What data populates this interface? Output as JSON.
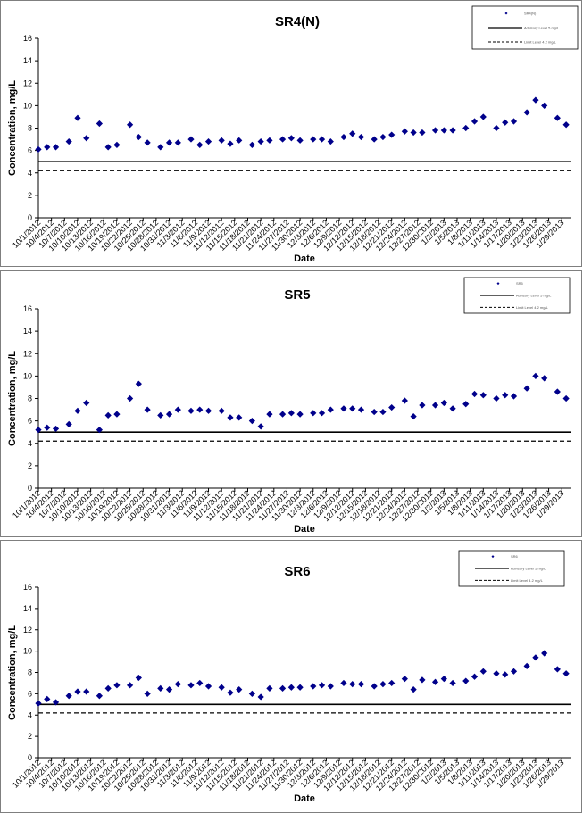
{
  "x_dates": [
    "10/1/2012",
    "10/4/2012",
    "10/7/2012",
    "10/10/2012",
    "10/13/2012",
    "10/16/2012",
    "10/19/2012",
    "10/22/2012",
    "10/25/2012",
    "10/28/2012",
    "10/31/2012",
    "11/3/2012",
    "11/6/2012",
    "11/9/2012",
    "11/12/2012",
    "11/15/2012",
    "11/18/2012",
    "11/21/2012",
    "11/24/2012",
    "11/27/2012",
    "11/30/2012",
    "12/3/2012",
    "12/6/2012",
    "12/9/2012",
    "12/12/2012",
    "12/15/2012",
    "12/18/2012",
    "12/21/2012",
    "12/24/2012",
    "12/27/2012",
    "12/30/2012",
    "1/2/2013",
    "1/5/2013",
    "1/8/2013",
    "1/11/2013",
    "1/14/2013",
    "1/17/2013",
    "1/20/2013",
    "1/23/2013",
    "1/26/2013",
    "1/29/2013"
  ],
  "colors": {
    "marker": "#00008b",
    "line": "#000000",
    "frame": "#7f7f7f"
  },
  "chart_data": [
    {
      "type": "scatter",
      "title": "SR4(N)",
      "xlabel": "Date",
      "ylabel": "Concentration, mg/L",
      "ylim": [
        0,
        16
      ],
      "yticks": [
        0,
        2,
        4,
        6,
        8,
        10,
        12,
        14,
        16
      ],
      "xtick_labels": [
        "10/1/2012",
        "10/4/2012",
        "10/7/2012",
        "10/10/2012",
        "10/13/2012",
        "10/16/2012",
        "10/19/2012",
        "10/22/2012",
        "10/25/2012",
        "10/28/2012",
        "10/31/2012",
        "11/3/2012",
        "11/6/2012",
        "11/9/2012",
        "11/12/2012",
        "11/15/2012",
        "11/18/2012",
        "11/21/2012",
        "11/24/2012",
        "11/27/2012",
        "11/30/2012",
        "12/3/2012",
        "12/6/2012",
        "12/9/2012",
        "12/12/2012",
        "12/15/2012",
        "12/18/2012",
        "12/21/2012",
        "12/24/2012",
        "12/27/2012",
        "12/30/2012",
        "1/2/2013",
        "1/5/2013",
        "1/8/2013",
        "1/11/2013",
        "1/14/2013",
        "1/17/2013",
        "1/20/2013",
        "1/23/2013",
        "1/26/2013",
        "1/29/2013"
      ],
      "legend": [
        "SR4(N)",
        "Advisory Level 5 mg/L",
        "Limit Level 4.2 mg/L"
      ],
      "legend_position": "top-right",
      "reference_lines": [
        {
          "value": 5.0,
          "style": "solid"
        },
        {
          "value": 4.2,
          "style": "dashed"
        }
      ],
      "points": [
        {
          "x": "10/1/2012",
          "y": 6.1
        },
        {
          "x": "10/3/2012",
          "y": 6.3
        },
        {
          "x": "10/5/2012",
          "y": 6.3
        },
        {
          "x": "10/8/2012",
          "y": 6.8
        },
        {
          "x": "10/10/2012",
          "y": 8.9
        },
        {
          "x": "10/12/2012",
          "y": 7.1
        },
        {
          "x": "10/15/2012",
          "y": 8.4
        },
        {
          "x": "10/17/2012",
          "y": 6.3
        },
        {
          "x": "10/19/2012",
          "y": 6.5
        },
        {
          "x": "10/22/2012",
          "y": 8.3
        },
        {
          "x": "10/24/2012",
          "y": 7.2
        },
        {
          "x": "10/26/2012",
          "y": 6.7
        },
        {
          "x": "10/29/2012",
          "y": 6.3
        },
        {
          "x": "10/31/2012",
          "y": 6.7
        },
        {
          "x": "11/2/2012",
          "y": 6.7
        },
        {
          "x": "11/5/2012",
          "y": 7.0
        },
        {
          "x": "11/7/2012",
          "y": 6.5
        },
        {
          "x": "11/9/2012",
          "y": 6.8
        },
        {
          "x": "11/12/2012",
          "y": 6.9
        },
        {
          "x": "11/14/2012",
          "y": 6.6
        },
        {
          "x": "11/16/2012",
          "y": 6.9
        },
        {
          "x": "11/19/2012",
          "y": 6.5
        },
        {
          "x": "11/21/2012",
          "y": 6.8
        },
        {
          "x": "11/23/2012",
          "y": 6.9
        },
        {
          "x": "11/26/2012",
          "y": 7.0
        },
        {
          "x": "11/28/2012",
          "y": 7.1
        },
        {
          "x": "11/30/2012",
          "y": 6.9
        },
        {
          "x": "12/3/2012",
          "y": 7.0
        },
        {
          "x": "12/5/2012",
          "y": 7.0
        },
        {
          "x": "12/7/2012",
          "y": 6.8
        },
        {
          "x": "12/10/2012",
          "y": 7.2
        },
        {
          "x": "12/12/2012",
          "y": 7.5
        },
        {
          "x": "12/14/2012",
          "y": 7.2
        },
        {
          "x": "12/17/2012",
          "y": 7.0
        },
        {
          "x": "12/19/2012",
          "y": 7.2
        },
        {
          "x": "12/21/2012",
          "y": 7.4
        },
        {
          "x": "12/24/2012",
          "y": 7.7
        },
        {
          "x": "12/26/2012",
          "y": 7.6
        },
        {
          "x": "12/28/2012",
          "y": 7.6
        },
        {
          "x": "12/31/2012",
          "y": 7.8
        },
        {
          "x": "1/2/2013",
          "y": 7.8
        },
        {
          "x": "1/4/2013",
          "y": 7.8
        },
        {
          "x": "1/7/2013",
          "y": 8.0
        },
        {
          "x": "1/9/2013",
          "y": 8.6
        },
        {
          "x": "1/11/2013",
          "y": 9.0
        },
        {
          "x": "1/14/2013",
          "y": 8.0
        },
        {
          "x": "1/16/2013",
          "y": 8.5
        },
        {
          "x": "1/18/2013",
          "y": 8.6
        },
        {
          "x": "1/21/2013",
          "y": 9.4
        },
        {
          "x": "1/23/2013",
          "y": 10.5
        },
        {
          "x": "1/25/2013",
          "y": 10.0
        },
        {
          "x": "1/28/2013",
          "y": 8.9
        },
        {
          "x": "1/30/2013",
          "y": 8.3
        }
      ]
    },
    {
      "type": "scatter",
      "title": "SR5",
      "xlabel": "Date",
      "ylabel": "Concentration, mg/L",
      "ylim": [
        0,
        16
      ],
      "yticks": [
        0,
        2,
        4,
        6,
        8,
        10,
        12,
        14,
        16
      ],
      "xtick_labels": [
        "10/1/2012",
        "10/4/2012",
        "10/7/2012",
        "10/10/2012",
        "10/13/2012",
        "10/16/2012",
        "10/19/2012",
        "10/22/2012",
        "10/25/2012",
        "10/28/2012",
        "10/31/2012",
        "11/3/2012",
        "11/6/2012",
        "11/9/2012",
        "11/12/2012",
        "11/15/2012",
        "11/18/2012",
        "11/21/2012",
        "11/24/2012",
        "11/27/2012",
        "11/30/2012",
        "12/3/2012",
        "12/6/2012",
        "12/9/2012",
        "12/12/2012",
        "12/15/2012",
        "12/18/2012",
        "12/21/2012",
        "12/24/2012",
        "12/27/2012",
        "12/30/2012",
        "1/2/2013",
        "1/5/2013",
        "1/8/2013",
        "1/11/2013",
        "1/14/2013",
        "1/17/2013",
        "1/20/2013",
        "1/23/2013",
        "1/26/2013",
        "1/29/2013"
      ],
      "legend": [
        "SR5",
        "Advisory Level 5 mg/L",
        "Limit Level 4.2 mg/L"
      ],
      "legend_position": "top-right",
      "reference_lines": [
        {
          "value": 5.0,
          "style": "solid"
        },
        {
          "value": 4.2,
          "style": "dashed"
        }
      ],
      "points": [
        {
          "x": "10/1/2012",
          "y": 5.2
        },
        {
          "x": "10/3/2012",
          "y": 5.4
        },
        {
          "x": "10/5/2012",
          "y": 5.3
        },
        {
          "x": "10/8/2012",
          "y": 5.7
        },
        {
          "x": "10/10/2012",
          "y": 6.9
        },
        {
          "x": "10/12/2012",
          "y": 7.6
        },
        {
          "x": "10/15/2012",
          "y": 5.2
        },
        {
          "x": "10/17/2012",
          "y": 6.5
        },
        {
          "x": "10/19/2012",
          "y": 6.6
        },
        {
          "x": "10/22/2012",
          "y": 8.0
        },
        {
          "x": "10/24/2012",
          "y": 9.3
        },
        {
          "x": "10/26/2012",
          "y": 7.0
        },
        {
          "x": "10/29/2012",
          "y": 6.5
        },
        {
          "x": "10/31/2012",
          "y": 6.6
        },
        {
          "x": "11/2/2012",
          "y": 7.0
        },
        {
          "x": "11/5/2012",
          "y": 6.9
        },
        {
          "x": "11/7/2012",
          "y": 7.0
        },
        {
          "x": "11/9/2012",
          "y": 6.9
        },
        {
          "x": "11/12/2012",
          "y": 6.9
        },
        {
          "x": "11/14/2012",
          "y": 6.3
        },
        {
          "x": "11/16/2012",
          "y": 6.3
        },
        {
          "x": "11/19/2012",
          "y": 6.0
        },
        {
          "x": "11/21/2012",
          "y": 5.5
        },
        {
          "x": "11/23/2012",
          "y": 6.6
        },
        {
          "x": "11/26/2012",
          "y": 6.6
        },
        {
          "x": "11/28/2012",
          "y": 6.7
        },
        {
          "x": "11/30/2012",
          "y": 6.6
        },
        {
          "x": "12/3/2012",
          "y": 6.7
        },
        {
          "x": "12/5/2012",
          "y": 6.7
        },
        {
          "x": "12/7/2012",
          "y": 7.0
        },
        {
          "x": "12/10/2012",
          "y": 7.1
        },
        {
          "x": "12/12/2012",
          "y": 7.1
        },
        {
          "x": "12/14/2012",
          "y": 7.0
        },
        {
          "x": "12/17/2012",
          "y": 6.8
        },
        {
          "x": "12/19/2012",
          "y": 6.8
        },
        {
          "x": "12/21/2012",
          "y": 7.2
        },
        {
          "x": "12/24/2012",
          "y": 7.8
        },
        {
          "x": "12/26/2012",
          "y": 6.4
        },
        {
          "x": "12/28/2012",
          "y": 7.4
        },
        {
          "x": "12/31/2012",
          "y": 7.4
        },
        {
          "x": "1/2/2013",
          "y": 7.6
        },
        {
          "x": "1/4/2013",
          "y": 7.1
        },
        {
          "x": "1/7/2013",
          "y": 7.5
        },
        {
          "x": "1/9/2013",
          "y": 8.4
        },
        {
          "x": "1/11/2013",
          "y": 8.3
        },
        {
          "x": "1/14/2013",
          "y": 8.0
        },
        {
          "x": "1/16/2013",
          "y": 8.3
        },
        {
          "x": "1/18/2013",
          "y": 8.2
        },
        {
          "x": "1/21/2013",
          "y": 8.9
        },
        {
          "x": "1/23/2013",
          "y": 10.0
        },
        {
          "x": "1/25/2013",
          "y": 9.8
        },
        {
          "x": "1/28/2013",
          "y": 8.6
        },
        {
          "x": "1/30/2013",
          "y": 8.0
        }
      ]
    },
    {
      "type": "scatter",
      "title": "SR6",
      "xlabel": "Date",
      "ylabel": "Concentration, mg/L",
      "ylim": [
        0,
        16
      ],
      "yticks": [
        0,
        2,
        4,
        6,
        8,
        10,
        12,
        14,
        16
      ],
      "xtick_labels": [
        "10/1/2012",
        "10/4/2012",
        "10/7/2012",
        "10/10/2012",
        "10/13/2012",
        "10/16/2012",
        "10/19/2012",
        "10/22/2012",
        "10/25/2012",
        "10/28/2012",
        "10/31/2012",
        "11/3/2012",
        "11/6/2012",
        "11/9/2012",
        "11/12/2012",
        "11/15/2012",
        "11/18/2012",
        "11/21/2012",
        "11/24/2012",
        "11/27/2012",
        "11/30/2012",
        "12/3/2012",
        "12/6/2012",
        "12/9/2012",
        "12/12/2012",
        "12/15/2012",
        "12/18/2012",
        "12/21/2012",
        "12/24/2012",
        "12/27/2012",
        "12/30/2012",
        "1/2/2013",
        "1/5/2013",
        "1/8/2013",
        "1/11/2013",
        "1/14/2013",
        "1/17/2013",
        "1/20/2013",
        "1/23/2013",
        "1/26/2013",
        "1/29/2013"
      ],
      "legend": [
        "SR6",
        "Advisory Level 5 mg/L",
        "Limit Level 4.2 mg/L"
      ],
      "legend_position": "top-right",
      "reference_lines": [
        {
          "value": 5.0,
          "style": "solid"
        },
        {
          "value": 4.2,
          "style": "dashed"
        }
      ],
      "points": [
        {
          "x": "10/1/2012",
          "y": 5.1
        },
        {
          "x": "10/3/2012",
          "y": 5.5
        },
        {
          "x": "10/5/2012",
          "y": 5.2
        },
        {
          "x": "10/8/2012",
          "y": 5.8
        },
        {
          "x": "10/10/2012",
          "y": 6.2
        },
        {
          "x": "10/12/2012",
          "y": 6.2
        },
        {
          "x": "10/15/2012",
          "y": 5.8
        },
        {
          "x": "10/17/2012",
          "y": 6.5
        },
        {
          "x": "10/19/2012",
          "y": 6.8
        },
        {
          "x": "10/22/2012",
          "y": 6.8
        },
        {
          "x": "10/24/2012",
          "y": 7.5
        },
        {
          "x": "10/26/2012",
          "y": 6.0
        },
        {
          "x": "10/29/2012",
          "y": 6.5
        },
        {
          "x": "10/31/2012",
          "y": 6.4
        },
        {
          "x": "11/2/2012",
          "y": 6.9
        },
        {
          "x": "11/5/2012",
          "y": 6.8
        },
        {
          "x": "11/7/2012",
          "y": 7.0
        },
        {
          "x": "11/9/2012",
          "y": 6.7
        },
        {
          "x": "11/12/2012",
          "y": 6.6
        },
        {
          "x": "11/14/2012",
          "y": 6.1
        },
        {
          "x": "11/16/2012",
          "y": 6.4
        },
        {
          "x": "11/19/2012",
          "y": 6.0
        },
        {
          "x": "11/21/2012",
          "y": 5.7
        },
        {
          "x": "11/23/2012",
          "y": 6.5
        },
        {
          "x": "11/26/2012",
          "y": 6.5
        },
        {
          "x": "11/28/2012",
          "y": 6.6
        },
        {
          "x": "11/30/2012",
          "y": 6.6
        },
        {
          "x": "12/3/2012",
          "y": 6.7
        },
        {
          "x": "12/5/2012",
          "y": 6.8
        },
        {
          "x": "12/7/2012",
          "y": 6.7
        },
        {
          "x": "12/10/2012",
          "y": 7.0
        },
        {
          "x": "12/12/2012",
          "y": 6.9
        },
        {
          "x": "12/14/2012",
          "y": 6.9
        },
        {
          "x": "12/17/2012",
          "y": 6.7
        },
        {
          "x": "12/19/2012",
          "y": 6.9
        },
        {
          "x": "12/21/2012",
          "y": 7.0
        },
        {
          "x": "12/24/2012",
          "y": 7.4
        },
        {
          "x": "12/26/2012",
          "y": 6.4
        },
        {
          "x": "12/28/2012",
          "y": 7.3
        },
        {
          "x": "12/31/2012",
          "y": 7.1
        },
        {
          "x": "1/2/2013",
          "y": 7.4
        },
        {
          "x": "1/4/2013",
          "y": 7.0
        },
        {
          "x": "1/7/2013",
          "y": 7.2
        },
        {
          "x": "1/9/2013",
          "y": 7.6
        },
        {
          "x": "1/11/2013",
          "y": 8.1
        },
        {
          "x": "1/14/2013",
          "y": 7.9
        },
        {
          "x": "1/16/2013",
          "y": 7.8
        },
        {
          "x": "1/18/2013",
          "y": 8.1
        },
        {
          "x": "1/21/2013",
          "y": 8.6
        },
        {
          "x": "1/23/2013",
          "y": 9.4
        },
        {
          "x": "1/25/2013",
          "y": 9.8
        },
        {
          "x": "1/28/2013",
          "y": 8.3
        },
        {
          "x": "1/30/2013",
          "y": 7.9
        }
      ]
    }
  ]
}
